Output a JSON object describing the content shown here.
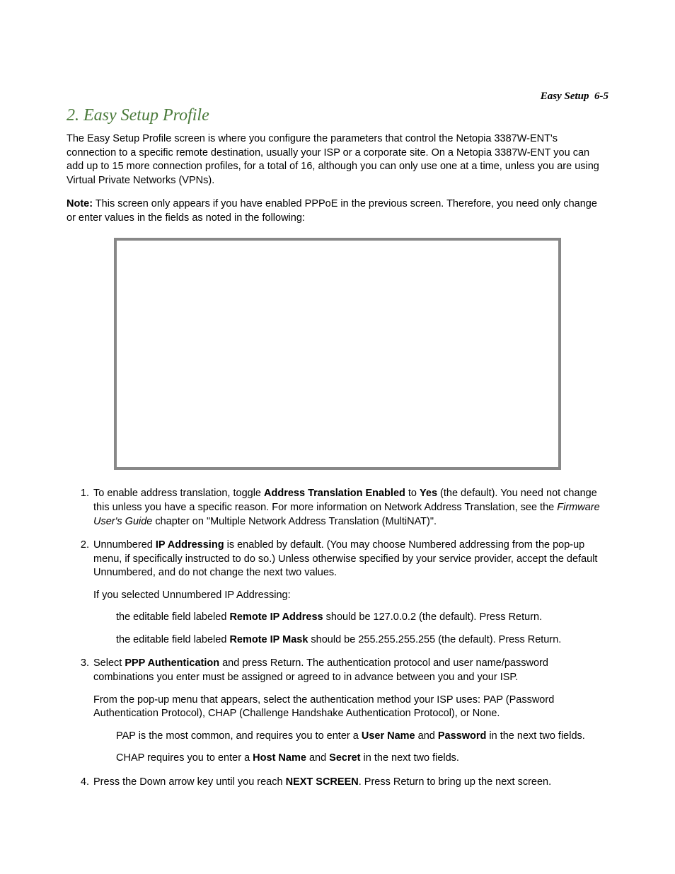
{
  "header": {
    "section_label": "Easy Setup",
    "page_num": "6-5"
  },
  "title": "2. Easy Setup Profile",
  "intro": {
    "p1": "The Easy Setup Profile screen is where you configure the parameters that control the Netopia 3387W-ENT's connection to a specific remote destination, usually your ISP or a corporate site. On a Netopia 3387W-ENT you can add up to 15 more connection profiles, for a total of 16, although you can only use one at a time, unless you are using Virtual Private Networks (VPNs).",
    "note_label": "Note:",
    "note_body": " This screen only appears if you have enabled PPPoE in the previous screen. Therefore, you need only change or enter values in the fields as noted in the following:"
  },
  "steps": {
    "s1": {
      "pre": "To enable address translation, toggle ",
      "bold1": "Address Translation Enabled",
      "mid1": " to ",
      "bold2": "Yes",
      "post1": " (the default). You need not change this unless you have a specific reason. For more information on Network Address Translation, see the ",
      "italic1": "Firmware User's Guide",
      "post2": " chapter on \"Multiple Network Address Translation (MultiNAT)\"."
    },
    "s2": {
      "pre": "Unnumbered ",
      "bold1": "IP Addressing",
      "post1": " is enabled by default. (You may choose Numbered addressing from the pop-up menu, if specifically instructed to do so.) Unless otherwise specified by your service provider, accept the default Unnumbered, and do not change the next two values.",
      "sub1": "If you selected Unnumbered IP Addressing:",
      "sub2_pre": "the editable field labeled ",
      "sub2_bold": "Remote IP Address",
      "sub2_post": " should be 127.0.0.2 (the default). Press Return.",
      "sub3_pre": "the editable field labeled ",
      "sub3_bold": "Remote IP Mask",
      "sub3_post": " should be 255.255.255.255 (the default). Press Return."
    },
    "s3": {
      "pre": "Select ",
      "bold1": "PPP Authentication",
      "post1": " and press Return. The authentication protocol and user name/password combinations you enter must be assigned or agreed to in advance between you and your ISP.",
      "sub1": "From the pop-up menu that appears, select the authentication method your ISP uses: PAP (Password Authentication Protocol), CHAP (Challenge Handshake Authentication Protocol), or None.",
      "sub2_pre": "PAP is the most common, and requires you to enter a ",
      "sub2_bold1": "User Name",
      "sub2_mid": " and ",
      "sub2_bold2": "Password",
      "sub2_post": " in the next two fields.",
      "sub3_pre": "CHAP requires you to enter a ",
      "sub3_bold1": "Host Name",
      "sub3_mid": " and ",
      "sub3_bold2": "Secret",
      "sub3_post": " in the next two fields."
    },
    "s4": {
      "pre": "Press the Down arrow key until you reach ",
      "bold1": "NEXT SCREEN",
      "post1": ". Press Return to bring up the next screen."
    }
  },
  "colors": {
    "title_color": "#4a7a3a",
    "box_border": "#888888",
    "text": "#000000",
    "background": "#ffffff"
  },
  "typography": {
    "title_fontsize": 24,
    "body_fontsize": 14.5,
    "header_fontsize": 15
  }
}
